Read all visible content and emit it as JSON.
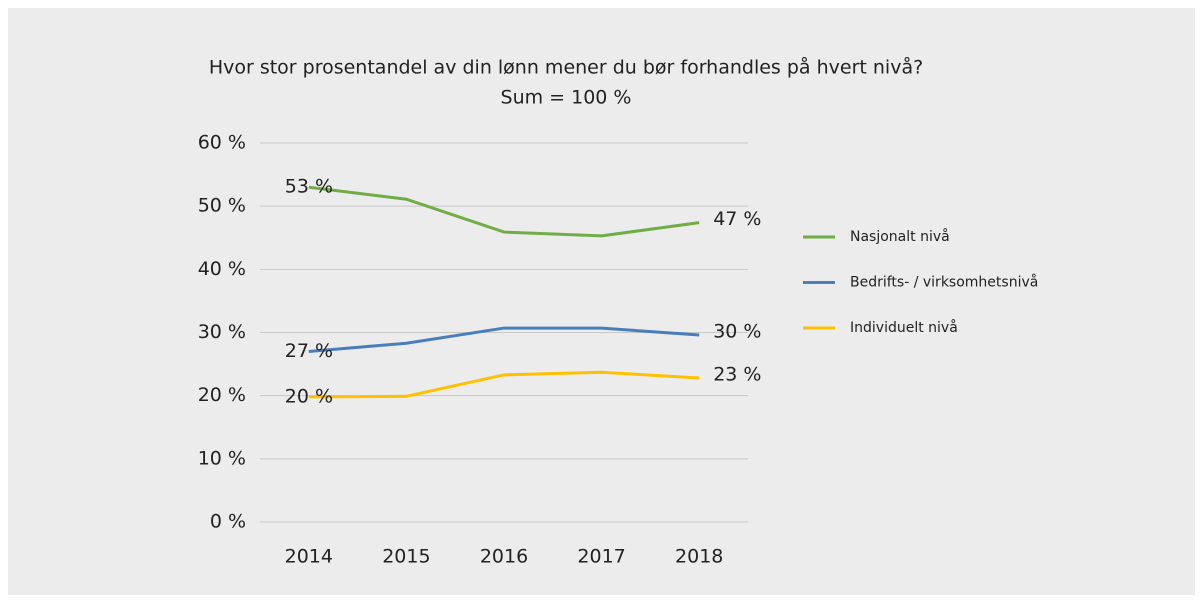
{
  "chart_data": {
    "type": "line",
    "title": "Hvor stor prosentandel av din lønn mener du bør forhandles på hvert nivå?",
    "subtitle": "Sum = 100 %",
    "categories": [
      "2014",
      "2015",
      "2016",
      "2017",
      "2018"
    ],
    "series": [
      {
        "name": "Nasjonalt nivå",
        "color": "#70ad47",
        "values": [
          53,
          51.1,
          45.9,
          45.3,
          47.4
        ],
        "value_labels": [
          "53 %",
          null,
          null,
          null,
          "47 %"
        ]
      },
      {
        "name": "Bedrifts- / virksomhetsnivå",
        "color": "#4a7ebb",
        "values": [
          27,
          28.3,
          30.7,
          30.7,
          29.6
        ],
        "value_labels": [
          "27 %",
          null,
          null,
          null,
          "30 %"
        ]
      },
      {
        "name": "Individuelt nivå",
        "color": "#ffc000",
        "values": [
          19.8,
          19.9,
          23.3,
          23.7,
          22.8
        ],
        "value_labels": [
          "20 %",
          null,
          null,
          null,
          "23 %"
        ]
      }
    ],
    "ylim": [
      0,
      60
    ],
    "yticks": [
      {
        "value": 0,
        "label": "0 %"
      },
      {
        "value": 10,
        "label": "10 %"
      },
      {
        "value": 20,
        "label": "20 %"
      },
      {
        "value": 30,
        "label": "30 %"
      },
      {
        "value": 40,
        "label": "40 %"
      },
      {
        "value": 50,
        "label": "50 %"
      },
      {
        "value": 60,
        "label": "60 %"
      }
    ],
    "grid": true,
    "legend": "right"
  }
}
